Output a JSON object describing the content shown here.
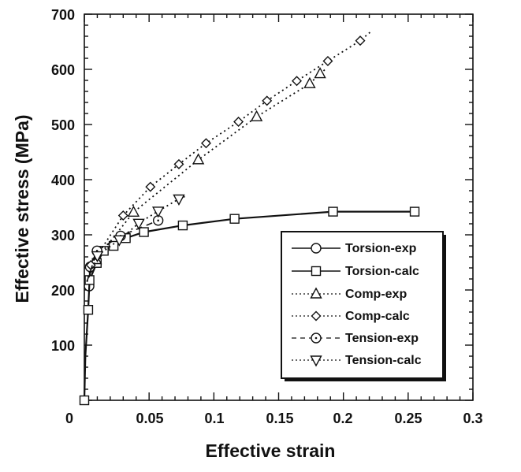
{
  "chart_data": {
    "type": "line",
    "title": "",
    "xlabel": "Effective strain",
    "ylabel": "Effective stress (MPa)",
    "xlim": [
      0,
      0.3
    ],
    "ylim": [
      0,
      700
    ],
    "xticks": [
      "0",
      "0.05",
      "0.1",
      "0.15",
      "0.2",
      "0.25",
      "0.3"
    ],
    "yticks": [
      "100",
      "200",
      "300",
      "400",
      "500",
      "600",
      "700"
    ],
    "grid": false,
    "legend_position": "bottom-right",
    "series": [
      {
        "name": "Torsion-exp",
        "marker": "circle",
        "line": "solid",
        "x": [
          0.0037,
          0.0045,
          0.0098
        ],
        "y": [
          207,
          242,
          270
        ]
      },
      {
        "name": "Torsion-calc",
        "marker": "square",
        "line": "solid",
        "x": [
          0,
          0.003,
          0.004,
          0.0096,
          0.015,
          0.0226,
          0.032,
          0.046,
          0.076,
          0.116,
          0.192,
          0.255
        ],
        "y": [
          0,
          164,
          218,
          249,
          271,
          280,
          294,
          305,
          317,
          329,
          342,
          342
        ]
      },
      {
        "name": "Comp-exp",
        "marker": "triangle-up",
        "line": "dotted",
        "x": [
          0.009,
          0.038,
          0.088,
          0.133,
          0.174,
          0.182
        ],
        "y": [
          255,
          341,
          436,
          514,
          574,
          592
        ]
      },
      {
        "name": "Comp-calc",
        "marker": "diamond",
        "line": "dotted",
        "x": [
          0.005,
          0.03,
          0.051,
          0.073,
          0.094,
          0.119,
          0.141,
          0.164,
          0.188,
          0.213
        ],
        "y": [
          245,
          335,
          387,
          428,
          466,
          505,
          543,
          579,
          615,
          652
        ]
      },
      {
        "name": "Tension-exp",
        "marker": "circle-dot",
        "line": "dashed",
        "x": [
          0.0098,
          0.028,
          0.057
        ],
        "y": [
          271,
          298,
          326
        ]
      },
      {
        "name": "Tension-calc",
        "marker": "triangle-down",
        "line": "dotted",
        "x": [
          0.01,
          0.027,
          0.042,
          0.057,
          0.073
        ],
        "y": [
          262,
          291,
          321,
          343,
          365
        ]
      }
    ]
  }
}
